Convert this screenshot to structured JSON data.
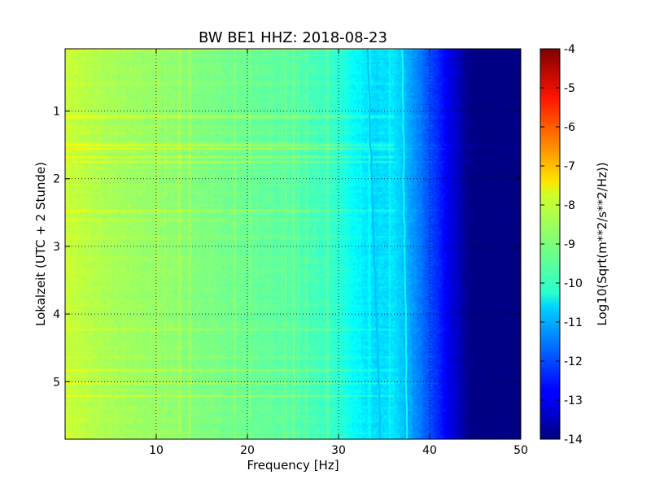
{
  "chart_data": {
    "type": "heatmap",
    "title": "BW BE1 HHZ: 2018-08-23",
    "xlabel": "Frequency [Hz]",
    "ylabel": "Lokalzeit (UTC + 2 Stunde)",
    "xlim": [
      0,
      50
    ],
    "ylim": [
      5.85,
      0.08
    ],
    "y_inverted": true,
    "x_ticks": [
      10,
      20,
      30,
      40,
      50
    ],
    "y_ticks": [
      1,
      2,
      3,
      4,
      5
    ],
    "grid": true,
    "colormap": "jet",
    "colorbar": {
      "label": "Log10(Sqrt(m**2/s**2/Hz))",
      "range": [
        -14,
        -4
      ],
      "ticks": [
        -4,
        -5,
        -6,
        -7,
        -8,
        -9,
        -10,
        -11,
        -12,
        -13,
        -14
      ]
    },
    "frequency_profile": {
      "frequency_hz": [
        0.5,
        2,
        5,
        10,
        15,
        20,
        25,
        28,
        30,
        31.5,
        33,
        34,
        36,
        37,
        38,
        39,
        40,
        41,
        42,
        43,
        44,
        45,
        50
      ],
      "log10_amplitude": [
        -8.3,
        -8.4,
        -8.6,
        -8.8,
        -9.0,
        -9.2,
        -9.4,
        -9.6,
        -9.8,
        -10.2,
        -10.5,
        -10.6,
        -10.5,
        -10.8,
        -11.2,
        -11.6,
        -12.0,
        -12.4,
        -12.9,
        -13.3,
        -13.8,
        -14.0,
        -14.0
      ]
    },
    "spectral_lines": [
      {
        "start_hz": 33.2,
        "end_hz": 34.6,
        "log10_amplitude": -10.9
      },
      {
        "start_hz": 37.0,
        "end_hz": 37.5,
        "log10_amplitude": -10.2
      }
    ]
  }
}
